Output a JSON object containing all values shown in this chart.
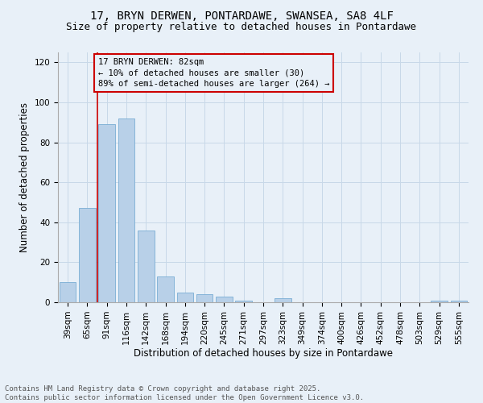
{
  "title_line1": "17, BRYN DERWEN, PONTARDAWE, SWANSEA, SA8 4LF",
  "title_line2": "Size of property relative to detached houses in Pontardawe",
  "xlabel": "Distribution of detached houses by size in Pontardawe",
  "ylabel": "Number of detached properties",
  "categories": [
    "39sqm",
    "65sqm",
    "91sqm",
    "116sqm",
    "142sqm",
    "168sqm",
    "194sqm",
    "220sqm",
    "245sqm",
    "271sqm",
    "297sqm",
    "323sqm",
    "349sqm",
    "374sqm",
    "400sqm",
    "426sqm",
    "452sqm",
    "478sqm",
    "503sqm",
    "529sqm",
    "555sqm"
  ],
  "values": [
    10,
    47,
    89,
    92,
    36,
    13,
    5,
    4,
    3,
    1,
    0,
    2,
    0,
    0,
    0,
    0,
    0,
    0,
    0,
    1,
    1
  ],
  "bar_color": "#b8d0e8",
  "bar_edge_color": "#7aadd4",
  "grid_color": "#c8d8e8",
  "background_color": "#e8f0f8",
  "annotation_text": "17 BRYN DERWEN: 82sqm\n← 10% of detached houses are smaller (30)\n89% of semi-detached houses are larger (264) →",
  "vline_x": 1.5,
  "vline_color": "#cc0000",
  "annotation_box_color": "#cc0000",
  "ylim": [
    0,
    125
  ],
  "yticks": [
    0,
    20,
    40,
    60,
    80,
    100,
    120
  ],
  "footer": "Contains HM Land Registry data © Crown copyright and database right 2025.\nContains public sector information licensed under the Open Government Licence v3.0.",
  "title_fontsize": 10,
  "subtitle_fontsize": 9,
  "xlabel_fontsize": 8.5,
  "ylabel_fontsize": 8.5,
  "tick_fontsize": 7.5,
  "annotation_fontsize": 7.5,
  "footer_fontsize": 6.5
}
